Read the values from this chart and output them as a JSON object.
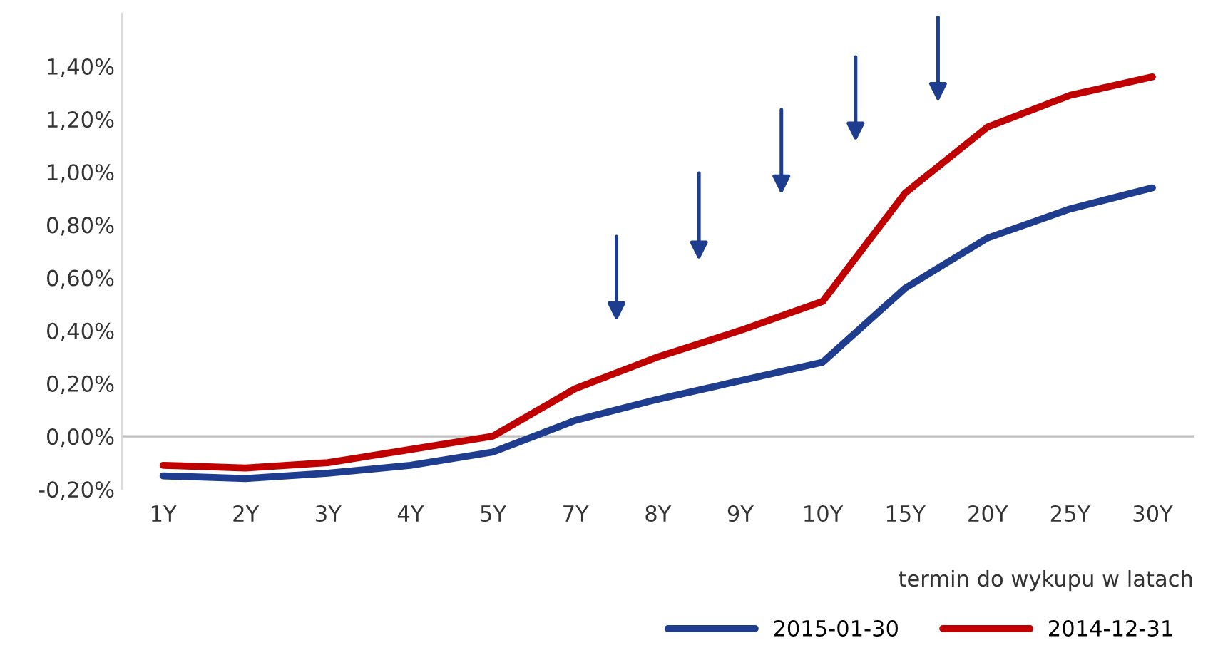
{
  "chart_data": {
    "type": "line",
    "xlabel": "termin do wykupu w latach",
    "categories": [
      "1Y",
      "2Y",
      "3Y",
      "4Y",
      "5Y",
      "7Y",
      "8Y",
      "9Y",
      "10Y",
      "15Y",
      "20Y",
      "25Y",
      "30Y"
    ],
    "series": [
      {
        "name": "2015-01-30",
        "color": "#1f3d8f",
        "values": [
          -0.15,
          -0.16,
          -0.14,
          -0.11,
          -0.06,
          0.06,
          0.14,
          0.21,
          0.28,
          0.56,
          0.75,
          0.86,
          0.94
        ]
      },
      {
        "name": "2014-12-31",
        "color": "#c00000",
        "values": [
          -0.11,
          -0.12,
          -0.1,
          -0.05,
          0.0,
          0.18,
          0.3,
          0.4,
          0.51,
          0.92,
          1.17,
          1.29,
          1.36
        ]
      }
    ],
    "ylim": [
      -0.2,
      1.6
    ],
    "yticks": [
      {
        "value": -0.2,
        "label": "-0,20%"
      },
      {
        "value": 0,
        "label": "0,00%"
      },
      {
        "value": 0.2,
        "label": "0,20%"
      },
      {
        "value": 0.4,
        "label": "0,40%"
      },
      {
        "value": 0.6,
        "label": "0,60%"
      },
      {
        "value": 0.8,
        "label": "0,80%"
      },
      {
        "value": 1.0,
        "label": "1,00%"
      },
      {
        "value": 1.2,
        "label": "1,20%"
      },
      {
        "value": 1.4,
        "label": "1,40%"
      }
    ],
    "ref_lines": [
      {
        "axis": "y",
        "value": 0,
        "color": "#bfbfbf",
        "line_style": "solid"
      }
    ],
    "legend": "bottom right",
    "grid": false,
    "marker": "none",
    "line_style": "solid"
  }
}
